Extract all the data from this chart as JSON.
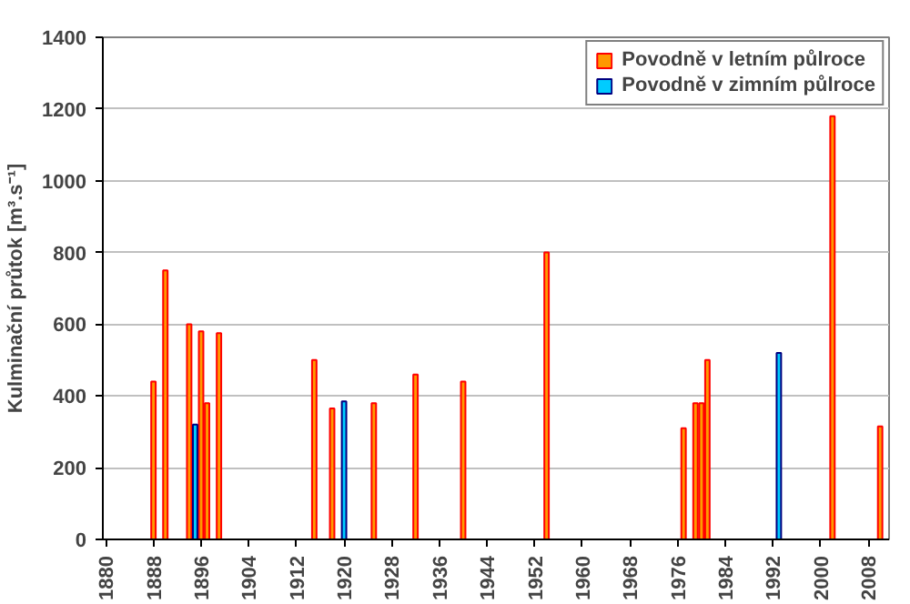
{
  "chart_data": {
    "type": "bar",
    "ylabel": "Kulminační průtok [m³.s⁻¹]",
    "series": [
      {
        "name": "Povodně v letním půlroce",
        "color": "#ff9900",
        "x": [
          1888,
          1890,
          1894,
          1896,
          1897,
          1899,
          1915,
          1918,
          1925,
          1932,
          1940,
          1954,
          1977,
          1979,
          1980,
          1981,
          2002,
          2010
        ],
        "values": [
          440,
          750,
          600,
          580,
          380,
          575,
          500,
          365,
          380,
          460,
          440,
          800,
          310,
          380,
          380,
          500,
          1180,
          315
        ]
      },
      {
        "name": "Povodně v zimním půlroce",
        "color": "#00ccff",
        "x": [
          1895,
          1920,
          1993
        ],
        "values": [
          320,
          385,
          520
        ]
      }
    ],
    "xlim": [
      1879.5,
      2011.5
    ],
    "xticks": [
      1880,
      1888,
      1896,
      1904,
      1912,
      1920,
      1928,
      1936,
      1944,
      1952,
      1960,
      1968,
      1976,
      1984,
      1992,
      2000,
      2008
    ],
    "ylim": [
      0,
      1400
    ],
    "yticks": [
      0,
      200,
      400,
      600,
      800,
      1000,
      1200,
      1400
    ],
    "grid": "y",
    "legend": "top right"
  }
}
